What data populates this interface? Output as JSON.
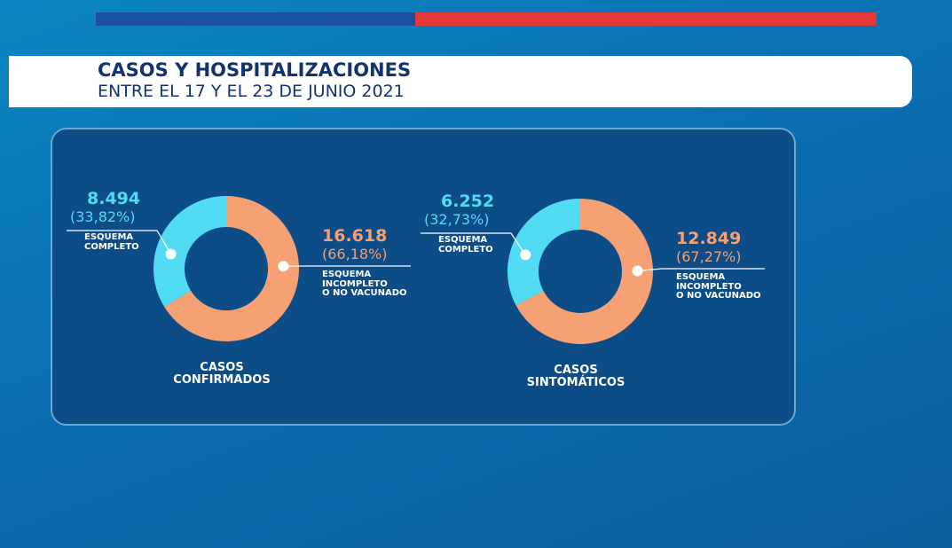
{
  "header": {
    "title": "CASOS Y HOSPITALIZACIONES",
    "subtitle": "ENTRE EL 17 Y EL 23 DE JUNIO 2021"
  },
  "chart_data": [
    {
      "type": "pie",
      "donut": true,
      "title": "CASOS\nCONFIRMADOS",
      "categories": [
        "ESQUEMA\nCOMPLETO",
        "ESQUEMA\nINCOMPLETO\nO NO VACUNADO"
      ],
      "values": [
        8494,
        16618
      ],
      "value_labels": [
        "8.494",
        "16.618"
      ],
      "percent_labels": [
        "(33,82%)",
        "(66,18%)"
      ],
      "colors": [
        "#52dcf3",
        "#f5a174"
      ]
    },
    {
      "type": "pie",
      "donut": true,
      "title": "CASOS\nSINTOMÁTICOS",
      "categories": [
        "ESQUEMA\nCOMPLETO",
        "ESQUEMA\nINCOMPLETO\nO NO VACUNADO"
      ],
      "values": [
        6252,
        12849
      ],
      "value_labels": [
        "6.252",
        "12.849"
      ],
      "percent_labels": [
        "(32,73%)",
        "(67,27%)"
      ],
      "colors": [
        "#52dcf3",
        "#f5a174"
      ]
    }
  ]
}
